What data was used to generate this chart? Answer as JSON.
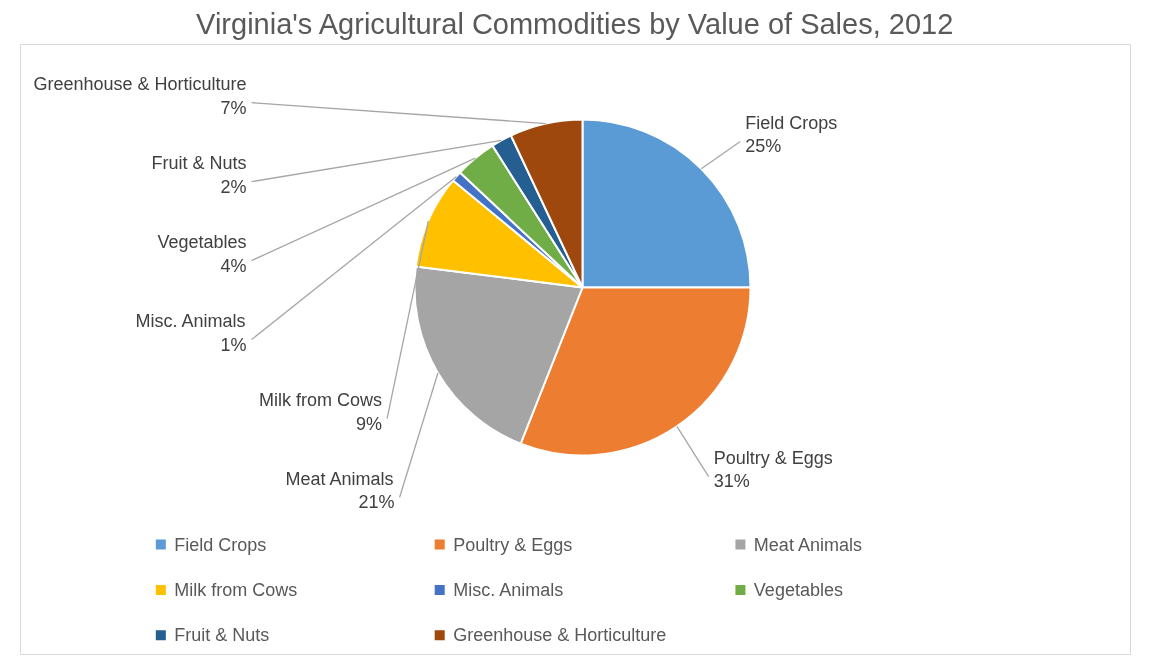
{
  "chart_data": {
    "type": "pie",
    "title": "Virginia's Agricultural Commodities by Value of Sales, 2012",
    "categories": [
      "Field Crops",
      "Poultry & Eggs",
      "Meat Animals",
      "Milk from Cows",
      "Misc. Animals",
      "Vegetables",
      "Fruit & Nuts",
      "Greenhouse & Horticulture"
    ],
    "values": [
      25,
      31,
      21,
      9,
      1,
      4,
      2,
      7
    ],
    "value_labels": [
      "25%",
      "31%",
      "21%",
      "9%",
      "1%",
      "4%",
      "2%",
      "7%"
    ],
    "colors": [
      "#5b9bd5",
      "#ed7d31",
      "#a5a5a5",
      "#ffc000",
      "#4472c4",
      "#70ad47",
      "#255e91",
      "#9e480e"
    ],
    "legend": "bottom"
  }
}
